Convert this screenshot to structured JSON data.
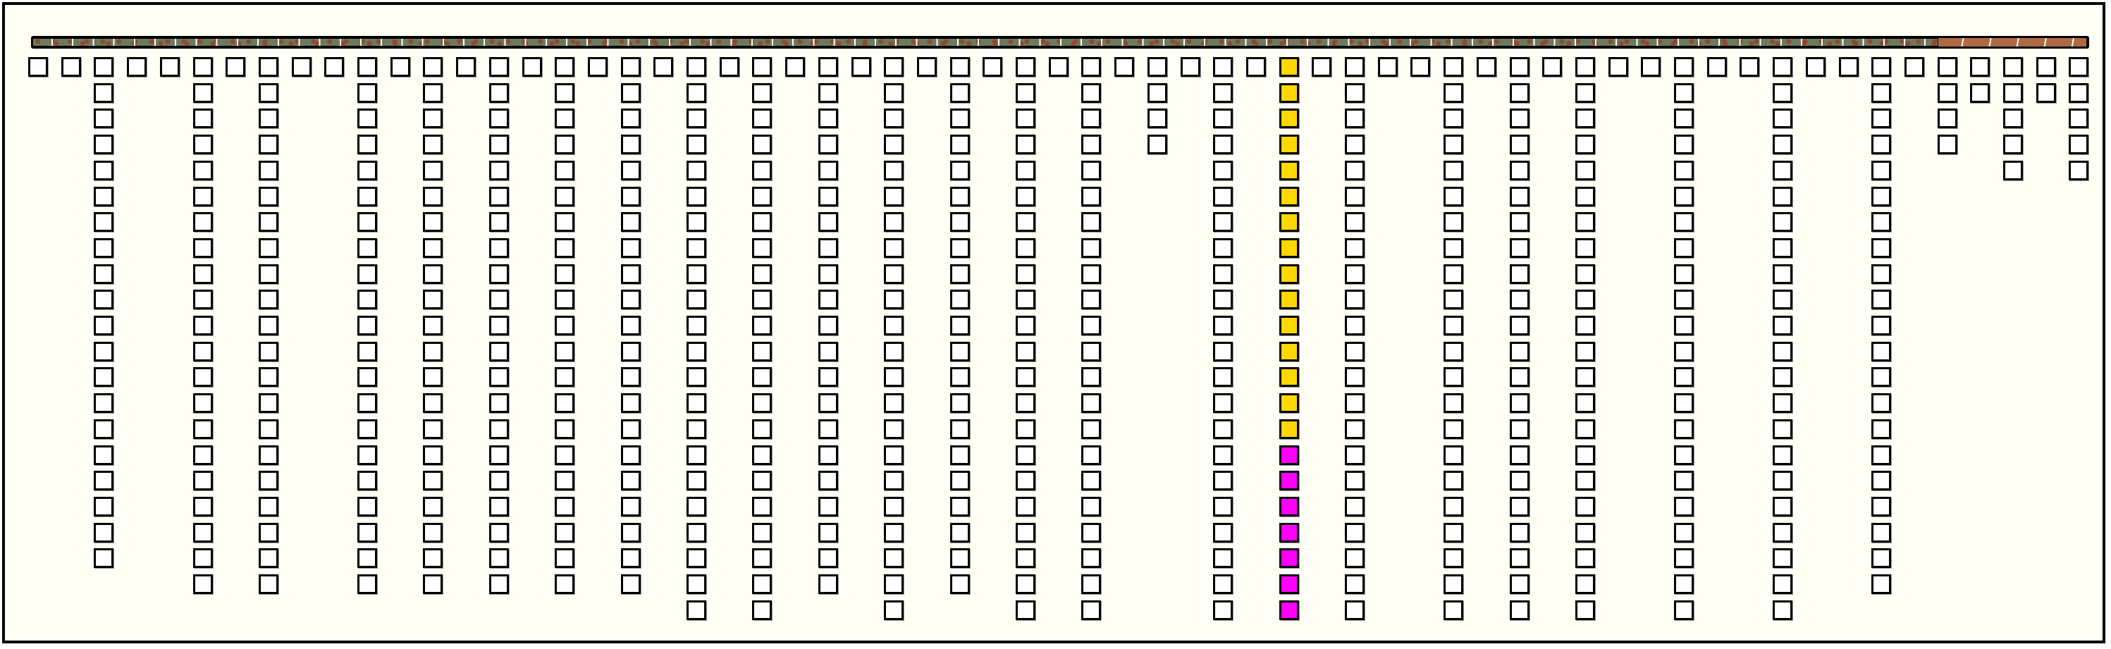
{
  "colors": {
    "background": "#fffff6",
    "cell_default": "#ffffff",
    "cell_border": "#000000",
    "yellow": "#FFD700",
    "magenta": "#FF00FF",
    "track_green": "#6c7a5f",
    "track_brown_dots": "#8f4a2c",
    "track_end": "#b06a42"
  },
  "grid": {
    "column_heights": [
      1,
      1,
      20,
      1,
      1,
      21,
      1,
      21,
      1,
      1,
      21,
      1,
      21,
      1,
      21,
      1,
      21,
      1,
      21,
      1,
      22,
      1,
      22,
      1,
      21,
      1,
      22,
      1,
      21,
      1,
      22,
      1,
      22,
      1,
      4,
      1,
      22,
      1,
      22,
      1,
      22,
      1,
      1,
      22,
      1,
      22,
      1,
      22,
      1,
      1,
      22,
      1,
      1,
      22,
      1,
      1,
      21,
      1,
      4,
      2,
      5,
      2,
      5
    ],
    "highlighted_column": {
      "index": 38,
      "segments": [
        {
          "color": "yellow",
          "count": 15
        },
        {
          "color": "magenta",
          "count": 7
        }
      ]
    }
  }
}
